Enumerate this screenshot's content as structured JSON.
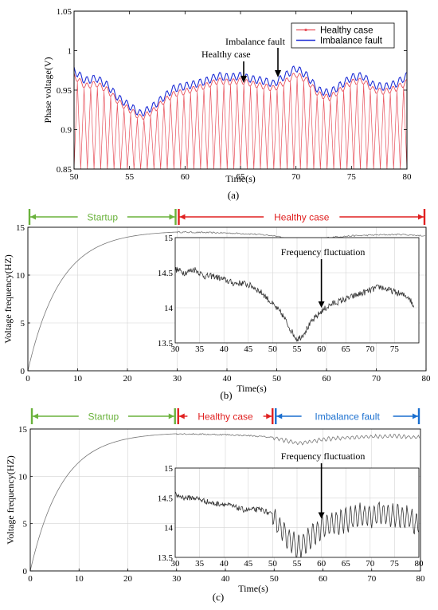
{
  "chart_data": [
    {
      "id": "a",
      "type": "line",
      "caption": "(a)",
      "xlabel": "Time(s)",
      "ylabel": "Phase voltage(V)",
      "xlim": [
        50,
        80
      ],
      "ylim": [
        0.85,
        1.05
      ],
      "xticks": [
        50,
        55,
        60,
        65,
        70,
        75,
        80
      ],
      "yticks": [
        0.85,
        0.9,
        0.95,
        1,
        1.05
      ],
      "ytick_labels": [
        "0.85",
        "0.9",
        "0.95",
        "1",
        "1.05"
      ],
      "grid": false,
      "legend": "top-right",
      "series": [
        {
          "name": "Healthy case",
          "color": "#e8505b",
          "envelope_x": [
            50,
            51,
            52,
            53,
            54,
            55,
            56,
            57,
            58,
            59,
            60,
            61,
            62,
            63,
            64,
            65,
            66,
            67,
            68,
            69,
            70,
            71,
            72,
            73,
            74,
            75,
            76,
            77,
            78,
            79,
            80
          ],
          "envelope_y": [
            0.968,
            0.955,
            0.958,
            0.95,
            0.935,
            0.925,
            0.915,
            0.922,
            0.935,
            0.945,
            0.948,
            0.952,
            0.956,
            0.962,
            0.96,
            0.962,
            0.958,
            0.955,
            0.952,
            0.96,
            0.97,
            0.962,
            0.945,
            0.94,
            0.95,
            0.96,
            0.962,
            0.95,
            0.948,
            0.952,
            0.96
          ],
          "min_level": 0.85
        },
        {
          "name": "Imbalance fault",
          "color": "#1f2fd6",
          "envelope_x": [
            50,
            51,
            52,
            53,
            54,
            55,
            56,
            57,
            58,
            59,
            60,
            61,
            62,
            63,
            64,
            65,
            66,
            67,
            68,
            69,
            70,
            71,
            72,
            73,
            74,
            75,
            76,
            77,
            78,
            79,
            80
          ],
          "envelope_y": [
            0.975,
            0.962,
            0.965,
            0.956,
            0.94,
            0.93,
            0.92,
            0.928,
            0.94,
            0.952,
            0.955,
            0.958,
            0.962,
            0.968,
            0.966,
            0.968,
            0.964,
            0.962,
            0.958,
            0.968,
            0.978,
            0.968,
            0.95,
            0.946,
            0.956,
            0.966,
            0.968,
            0.956,
            0.954,
            0.958,
            0.968
          ]
        }
      ],
      "annotations": [
        {
          "text": "Imbalance fault",
          "arrow_to": [
            68.5,
            0.965
          ]
        },
        {
          "text": "Healthy case",
          "arrow_to": [
            65.5,
            0.958
          ]
        }
      ]
    },
    {
      "id": "b",
      "type": "line",
      "caption": "(b)",
      "xlabel": "Time(s)",
      "ylabel": "Voltage frequency(HZ)",
      "xlim": [
        0,
        80
      ],
      "ylim": [
        0,
        15
      ],
      "xticks": [
        0,
        10,
        20,
        30,
        40,
        50,
        60,
        70,
        80
      ],
      "yticks": [
        0,
        5,
        10,
        15
      ],
      "grid": true,
      "phases": [
        {
          "label": "Startup",
          "start": 0,
          "end": 30,
          "color": "#6ab23c"
        },
        {
          "label": "Healthy case",
          "start": 30,
          "end": 80,
          "color": "#e02020"
        }
      ],
      "startup": {
        "final_value": 14.5,
        "time_constant": 6.5
      },
      "steady": {
        "x": [
          30,
          35,
          40,
          45,
          50,
          52,
          55,
          58,
          60,
          62,
          65,
          70,
          75,
          80
        ],
        "y": [
          14.5,
          14.45,
          14.4,
          14.3,
          14.1,
          13.8,
          13.55,
          13.7,
          13.9,
          14.0,
          14.1,
          14.2,
          14.25,
          14.1
        ]
      },
      "inset": {
        "xlim": [
          30,
          80
        ],
        "ylim": [
          13.5,
          15
        ],
        "xticks": [
          30,
          35,
          40,
          45,
          50,
          55,
          60,
          65,
          70,
          75
        ],
        "yticks": [
          13.5,
          14,
          14.5,
          15
        ],
        "annotation": {
          "text": "Frequency fluctuation",
          "arrow_to": [
            60,
            14.0
          ]
        },
        "x": [
          30,
          32,
          34,
          36,
          38,
          40,
          42,
          44,
          46,
          48,
          50,
          52,
          54,
          55,
          56,
          58,
          60,
          62,
          64,
          66,
          68,
          70,
          72,
          74,
          76,
          78,
          79
        ],
        "y": [
          14.55,
          14.5,
          14.55,
          14.45,
          14.45,
          14.4,
          14.35,
          14.35,
          14.3,
          14.2,
          14.05,
          13.9,
          13.65,
          13.55,
          13.6,
          13.8,
          13.95,
          14.05,
          14.1,
          14.15,
          14.2,
          14.25,
          14.3,
          14.25,
          14.2,
          14.15,
          14.0
        ],
        "oscillation": 0.0
      }
    },
    {
      "id": "c",
      "type": "line",
      "caption": "(c)",
      "xlabel": "Time(s)",
      "ylabel": "Voltage frequency(HZ)",
      "xlim": [
        0,
        80
      ],
      "ylim": [
        0,
        15
      ],
      "xticks": [
        0,
        10,
        20,
        30,
        40,
        50,
        60,
        70,
        80
      ],
      "yticks": [
        0,
        5,
        10,
        15
      ],
      "grid": true,
      "phases": [
        {
          "label": "Startup",
          "start": 0,
          "end": 30,
          "color": "#6ab23c"
        },
        {
          "label": "Healthy case",
          "start": 30,
          "end": 50,
          "color": "#e02020"
        },
        {
          "label": "Imbalance fault",
          "start": 50,
          "end": 80,
          "color": "#1a6fcf"
        }
      ],
      "startup": {
        "final_value": 14.5,
        "time_constant": 6.5
      },
      "steady": {
        "x": [
          30,
          35,
          40,
          45,
          50,
          52,
          55,
          58,
          60,
          62,
          65,
          70,
          75,
          80
        ],
        "y": [
          14.5,
          14.45,
          14.4,
          14.3,
          14.1,
          13.8,
          13.5,
          13.7,
          13.9,
          14.0,
          14.1,
          14.2,
          14.25,
          14.1
        ]
      },
      "inset": {
        "xlim": [
          30,
          80
        ],
        "ylim": [
          13.5,
          15
        ],
        "xticks": [
          30,
          35,
          40,
          45,
          50,
          55,
          60,
          65,
          70,
          75,
          80
        ],
        "yticks": [
          13.5,
          14,
          14.5,
          15
        ],
        "annotation": {
          "text": "Frequency fluctuation",
          "arrow_to": [
            60,
            14.15
          ]
        },
        "x": [
          30,
          32,
          34,
          36,
          38,
          40,
          42,
          44,
          46,
          48,
          50,
          52,
          54,
          55,
          56,
          58,
          60,
          62,
          64,
          66,
          68,
          70,
          72,
          74,
          76,
          78,
          80
        ],
        "y": [
          14.55,
          14.5,
          14.5,
          14.45,
          14.4,
          14.4,
          14.35,
          14.3,
          14.3,
          14.3,
          14.2,
          13.95,
          13.75,
          13.65,
          13.7,
          13.85,
          14.0,
          14.05,
          14.1,
          14.15,
          14.2,
          14.2,
          14.25,
          14.2,
          14.2,
          14.15,
          14.05
        ],
        "oscillation": 0.18
      }
    }
  ]
}
